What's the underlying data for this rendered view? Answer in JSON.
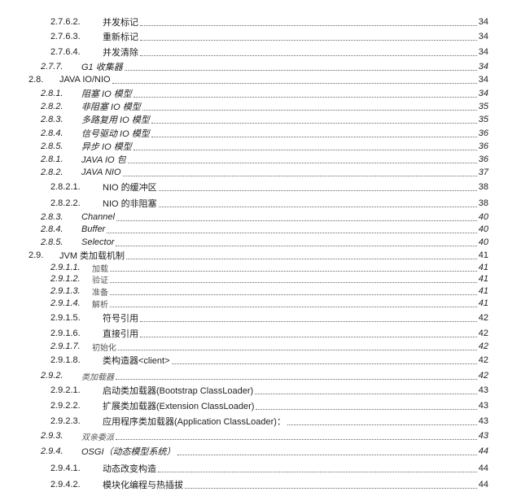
{
  "toc": [
    {
      "number": "2.7.6.2.",
      "title": "并发标记",
      "page": "34"
    },
    {
      "number": "2.7.6.3.",
      "title": "重新标记",
      "page": "34"
    },
    {
      "number": "2.7.6.4.",
      "title": "并发清除",
      "page": "34"
    },
    {
      "number": "2.7.7.",
      "title": "G1 收集器",
      "page": "34"
    },
    {
      "number": "2.8.",
      "title": "JAVA IO/NIO",
      "page": "34"
    },
    {
      "number": "2.8.1.",
      "title": "阻塞 IO 模型",
      "page": "34"
    },
    {
      "number": "2.8.2.",
      "title": "非阻塞 IO 模型",
      "page": "35"
    },
    {
      "number": "2.8.3.",
      "title": "多路复用 IO 模型",
      "page": "35"
    },
    {
      "number": "2.8.4.",
      "title": "信号驱动 IO 模型",
      "page": "36"
    },
    {
      "number": "2.8.5.",
      "title": "异步 IO 模型",
      "page": "36"
    },
    {
      "number": "2.8.1.",
      "title": "JAVA IO 包",
      "page": "36"
    },
    {
      "number": "2.8.2.",
      "title": "JAVA NIO",
      "page": "37"
    },
    {
      "number": "2.8.2.1.",
      "title": "NIO 的缓冲区",
      "page": "38"
    },
    {
      "number": "2.8.2.2.",
      "title": "NIO 的非阻塞",
      "page": "38"
    },
    {
      "number": "2.8.3.",
      "title": "Channel",
      "page": "40"
    },
    {
      "number": "2.8.4.",
      "title": "Buffer",
      "page": "40"
    },
    {
      "number": "2.8.5.",
      "title": "Selector",
      "page": "40"
    },
    {
      "number": "2.9.",
      "title": "JVM 类加载机制",
      "page": "41"
    },
    {
      "number": "2.9.1.1.",
      "title": "加载",
      "page": "41"
    },
    {
      "number": "2.9.1.2.",
      "title": "验证",
      "page": "41"
    },
    {
      "number": "2.9.1.3.",
      "title": "准备",
      "page": "41"
    },
    {
      "number": "2.9.1.4.",
      "title": "解析",
      "page": "41"
    },
    {
      "number": "2.9.1.5.",
      "title": "符号引用",
      "page": "42"
    },
    {
      "number": "2.9.1.6.",
      "title": "直接引用",
      "page": "42"
    },
    {
      "number": "2.9.1.7.",
      "title": "初始化",
      "page": "42"
    },
    {
      "number": "2.9.1.8.",
      "title": "类构造器<client>",
      "page": "42"
    },
    {
      "number": "2.9.2.",
      "title": "类加载器",
      "page": "42"
    },
    {
      "number": "2.9.2.1.",
      "title": "启动类加载器(Bootstrap ClassLoader)",
      "page": "43"
    },
    {
      "number": "2.9.2.2.",
      "title": "扩展类加载器(Extension ClassLoader)",
      "page": "43"
    },
    {
      "number": "2.9.2.3.",
      "title": "应用程序类加载器(Application ClassLoader)：",
      "page": "43"
    },
    {
      "number": "2.9.3.",
      "title": "双亲委派",
      "page": "43"
    },
    {
      "number": "2.9.4.",
      "title": "OSGI（动态模型系统）",
      "page": "44"
    },
    {
      "number": "2.9.4.1.",
      "title": "动态改变构造",
      "page": "44"
    },
    {
      "number": "2.9.4.2.",
      "title": "模块化编程与热插拔",
      "page": "44"
    }
  ]
}
